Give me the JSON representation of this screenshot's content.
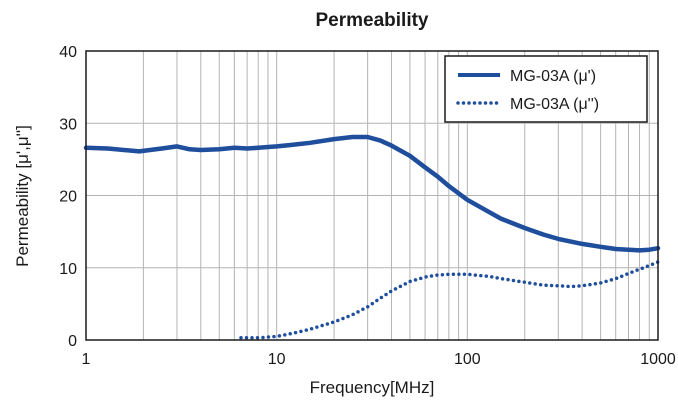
{
  "chart_data": {
    "type": "line",
    "title": "Permeability",
    "xlabel": "Frequency[MHz]",
    "ylabel": "Permeability [μ',μ'']",
    "x_scale": "log",
    "xlim": [
      1,
      1000
    ],
    "ylim": [
      0,
      40
    ],
    "x_ticks": [
      1,
      10,
      100,
      1000
    ],
    "x_tick_labels": [
      "1",
      "10",
      "100",
      "1000"
    ],
    "y_ticks": [
      0,
      10,
      20,
      30,
      40
    ],
    "y_tick_labels": [
      "0",
      "10",
      "20",
      "30",
      "40"
    ],
    "grid": true,
    "legend_position": "top-right",
    "series": [
      {
        "name": "MG-03A (μ')",
        "style": "solid",
        "color": "#1f4e9c",
        "x": [
          1,
          1.3,
          1.9,
          2.5,
          3,
          3.5,
          4,
          5,
          6,
          7,
          8,
          10,
          12,
          15,
          20,
          25,
          30,
          35,
          40,
          50,
          60,
          70,
          80,
          100,
          130,
          150,
          200,
          250,
          300,
          400,
          500,
          600,
          700,
          800,
          900,
          1000
        ],
        "y": [
          26.6,
          26.5,
          26.1,
          26.5,
          26.8,
          26.4,
          26.3,
          26.4,
          26.6,
          26.5,
          26.6,
          26.8,
          27,
          27.3,
          27.8,
          28.1,
          28.1,
          27.6,
          26.9,
          25.5,
          23.9,
          22.6,
          21.3,
          19.4,
          17.7,
          16.8,
          15.5,
          14.6,
          14,
          13.3,
          12.9,
          12.6,
          12.5,
          12.4,
          12.5,
          12.7
        ]
      },
      {
        "name": "MG-03A (μ'')",
        "style": "dotted",
        "color": "#1f4e9c",
        "x": [
          6.5,
          8,
          10,
          12,
          15,
          20,
          25,
          30,
          35,
          40,
          50,
          60,
          70,
          80,
          100,
          130,
          150,
          200,
          250,
          300,
          350,
          400,
          500,
          600,
          700,
          800,
          900,
          1000
        ],
        "y": [
          0.3,
          0.3,
          0.5,
          0.9,
          1.5,
          2.5,
          3.5,
          4.6,
          5.8,
          6.8,
          8.1,
          8.7,
          9,
          9.1,
          9.1,
          8.8,
          8.5,
          8,
          7.6,
          7.5,
          7.4,
          7.5,
          7.9,
          8.5,
          9.2,
          9.8,
          10.3,
          10.8
        ]
      }
    ]
  }
}
